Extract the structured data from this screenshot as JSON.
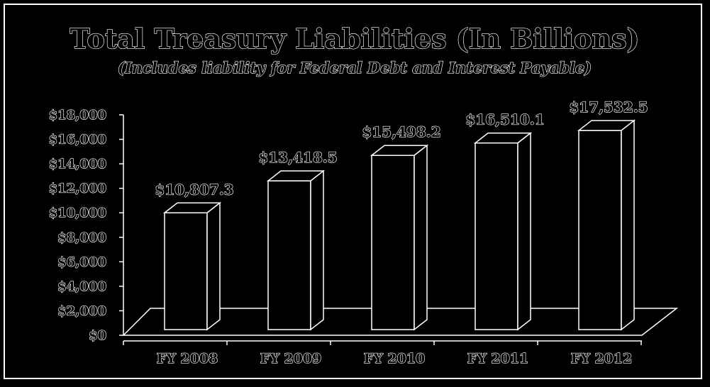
{
  "chart_data": {
    "type": "bar",
    "title": "Total Treasury Liabilities (In Billions)",
    "subtitle": "(Includes liability for Federal Debt and Interest Payable)",
    "categories": [
      "FY 2008",
      "FY 2009",
      "FY 2010",
      "FY 2011",
      "FY 2012"
    ],
    "values": [
      10807.3,
      13418.5,
      15498.2,
      16510.1,
      17532.5
    ],
    "value_labels": [
      "$10,807.3",
      "$13,418.5",
      "$15,498.2",
      "$16,510.1",
      "$17,532.5"
    ],
    "ylim": [
      0,
      18000
    ],
    "y_ticks": [
      0,
      2000,
      4000,
      6000,
      8000,
      10000,
      12000,
      14000,
      16000,
      18000
    ],
    "y_tick_labels": [
      "$0",
      "$2,000",
      "$4,000",
      "$6,000",
      "$8,000",
      "$10,000",
      "$12,000",
      "$14,000",
      "$16,000",
      "$18,000"
    ],
    "grid": false,
    "legend": "none",
    "style": "3d-outline",
    "colors": {
      "background": "#000000",
      "stroke": "#ffffff"
    }
  }
}
